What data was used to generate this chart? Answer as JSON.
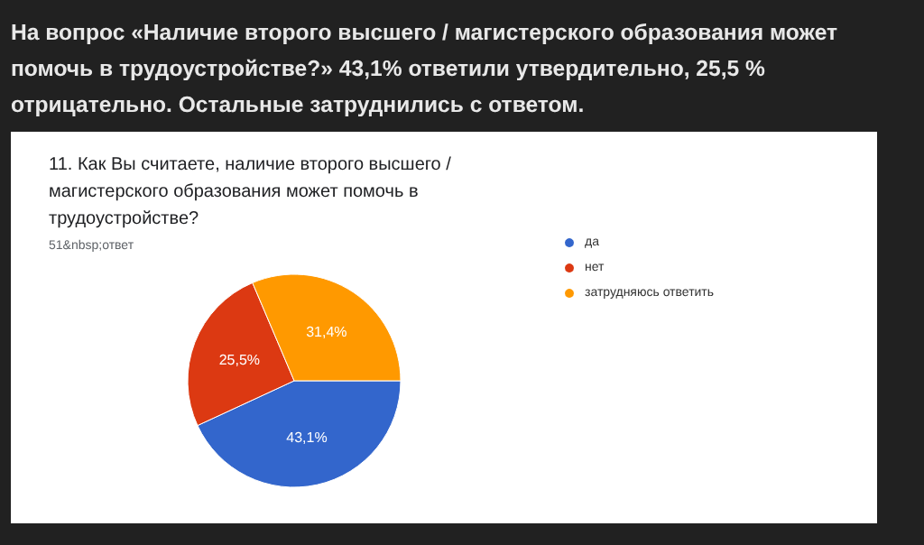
{
  "chart_data": {
    "type": "pie",
    "title": "11. Как Вы считаете, наличие второго высшего / магистерского образования может помочь в трудоустройстве?",
    "subtitle": "51&nbsp;ответ",
    "annotations": [
      "На вопрос «Наличие второго высшего / магистерского образования может помочь в трудоустройстве?» 43,1% ответили утвердительно, 25,5 % отрицательно. Остальные затруднились с ответом."
    ],
    "categories": [
      "да",
      "нет",
      "затрудняюсь ответить"
    ],
    "values": [
      43.1,
      25.5,
      31.4
    ],
    "value_labels": [
      "43,1%",
      "25,5%",
      "31,4%"
    ],
    "colors": [
      "#3366cc",
      "#dc3912",
      "#ff9900"
    ],
    "legend": "top right"
  }
}
